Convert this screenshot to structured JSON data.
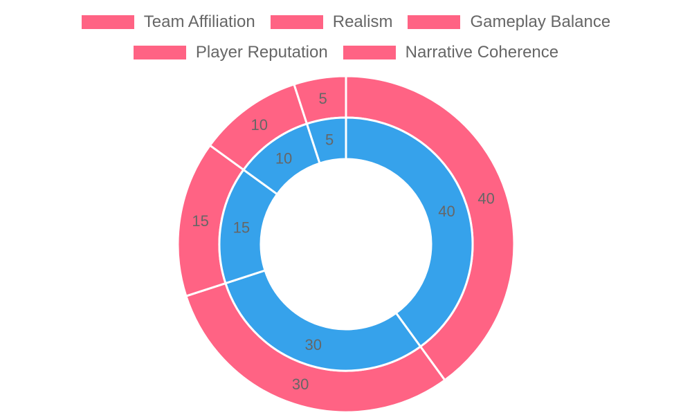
{
  "chart_data": {
    "type": "doughnut",
    "categories": [
      "Team Affiliation",
      "Realism",
      "Gameplay Balance",
      "Player Reputation",
      "Narrative Coherence"
    ],
    "series": [
      {
        "values": [
          40,
          30,
          15,
          10,
          5
        ],
        "color": "#ff6384"
      },
      {
        "values": [
          40,
          30,
          15,
          10,
          5
        ],
        "color": "#36a2eb"
      }
    ],
    "legend_position": "top",
    "legend_color": "#ff6384",
    "label_color": "#666666",
    "border_color": "#ffffff"
  }
}
